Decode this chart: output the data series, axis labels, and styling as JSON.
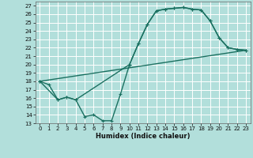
{
  "title": "",
  "xlabel": "Humidex (Indice chaleur)",
  "bg_color": "#b2dfdb",
  "grid_color": "#ffffff",
  "line_color": "#1a7060",
  "xlim": [
    -0.5,
    23.5
  ],
  "ylim": [
    13,
    27.5
  ],
  "yticks": [
    13,
    14,
    15,
    16,
    17,
    18,
    19,
    20,
    21,
    22,
    23,
    24,
    25,
    26,
    27
  ],
  "xticks": [
    0,
    1,
    2,
    3,
    4,
    5,
    6,
    7,
    8,
    9,
    10,
    11,
    12,
    13,
    14,
    15,
    16,
    17,
    18,
    19,
    20,
    21,
    22,
    23
  ],
  "line1_x": [
    0,
    1,
    2,
    3,
    4,
    5,
    6,
    7,
    8,
    9,
    10,
    11,
    12,
    13,
    14,
    15,
    16,
    17,
    18,
    19,
    20,
    21,
    22,
    23
  ],
  "line1_y": [
    18.0,
    17.6,
    15.8,
    16.1,
    15.8,
    13.8,
    14.0,
    13.3,
    13.3,
    16.5,
    20.0,
    22.5,
    24.8,
    26.4,
    26.6,
    26.7,
    26.8,
    26.6,
    26.5,
    25.2,
    23.2,
    22.0,
    21.8,
    21.7
  ],
  "line2_x": [
    0,
    2,
    3,
    4,
    10,
    11,
    12,
    13,
    14,
    15,
    16,
    17,
    18,
    19,
    20,
    21,
    22,
    23
  ],
  "line2_y": [
    18.0,
    15.8,
    16.1,
    15.8,
    20.0,
    22.5,
    24.8,
    26.4,
    26.6,
    26.7,
    26.8,
    26.6,
    26.5,
    25.2,
    23.2,
    22.0,
    21.8,
    21.7
  ],
  "line3_x": [
    0,
    23
  ],
  "line3_y": [
    18.0,
    21.7
  ],
  "marker_size": 3.0,
  "linewidth": 1.0,
  "tick_fontsize": 5.0,
  "xlabel_fontsize": 6.0
}
